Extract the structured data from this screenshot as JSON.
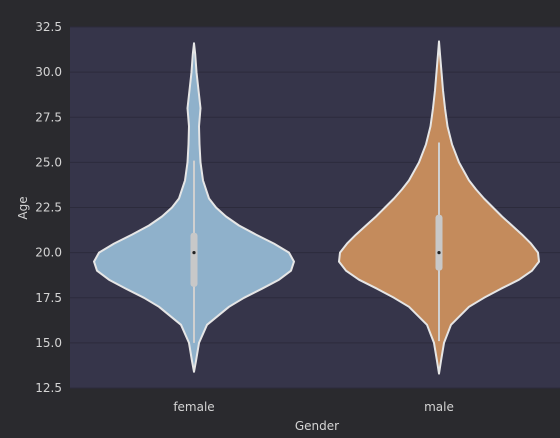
{
  "chart_data": {
    "type": "violin",
    "xlabel": "Gender",
    "ylabel": "Age",
    "ylim": [
      12.5,
      32.5
    ],
    "yticks": [
      12.5,
      15.0,
      17.5,
      20.0,
      22.5,
      25.0,
      27.5,
      30.0,
      32.5
    ],
    "grid": true,
    "categories": [
      "female",
      "male"
    ],
    "colors": {
      "background": "#2a2a2e",
      "plot_area": "#36354a",
      "grid": "#2c2b3c",
      "text": "#d4d4d4",
      "outline": "#e6e6e6",
      "whisker": "#d0d0d0",
      "box": "#c8c8c8",
      "female": "#8fb1cb",
      "male": "#c48b5c"
    },
    "series": [
      {
        "category": "female",
        "min": 13.4,
        "max": 31.6,
        "whisker_low": 15.0,
        "whisker_high": 25.1,
        "q1": 18.1,
        "median": 20.0,
        "q3": 21.1,
        "density_profile": [
          [
            13.4,
            0.0
          ],
          [
            14.0,
            0.02
          ],
          [
            15.0,
            0.05
          ],
          [
            16.0,
            0.13
          ],
          [
            17.0,
            0.35
          ],
          [
            17.5,
            0.5
          ],
          [
            18.0,
            0.68
          ],
          [
            18.5,
            0.85
          ],
          [
            19.0,
            0.97
          ],
          [
            19.5,
            1.0
          ],
          [
            20.0,
            0.95
          ],
          [
            20.5,
            0.8
          ],
          [
            21.0,
            0.62
          ],
          [
            21.5,
            0.45
          ],
          [
            22.0,
            0.32
          ],
          [
            22.5,
            0.22
          ],
          [
            23.0,
            0.15
          ],
          [
            24.0,
            0.09
          ],
          [
            25.0,
            0.065
          ],
          [
            26.0,
            0.055
          ],
          [
            27.0,
            0.05
          ],
          [
            28.0,
            0.065
          ],
          [
            29.0,
            0.045
          ],
          [
            30.0,
            0.025
          ],
          [
            31.0,
            0.012
          ],
          [
            31.6,
            0.0
          ]
        ]
      },
      {
        "category": "male",
        "min": 13.3,
        "max": 31.7,
        "whisker_low": 15.1,
        "whisker_high": 26.1,
        "q1": 19.0,
        "median": 20.0,
        "q3": 22.1,
        "density_profile": [
          [
            13.3,
            0.0
          ],
          [
            14.0,
            0.02
          ],
          [
            15.0,
            0.05
          ],
          [
            16.0,
            0.12
          ],
          [
            17.0,
            0.3
          ],
          [
            17.5,
            0.45
          ],
          [
            18.0,
            0.62
          ],
          [
            18.5,
            0.8
          ],
          [
            19.0,
            0.93
          ],
          [
            19.5,
            1.0
          ],
          [
            20.0,
            0.99
          ],
          [
            20.5,
            0.92
          ],
          [
            21.0,
            0.83
          ],
          [
            21.5,
            0.73
          ],
          [
            22.0,
            0.63
          ],
          [
            22.5,
            0.54
          ],
          [
            23.0,
            0.45
          ],
          [
            23.5,
            0.37
          ],
          [
            24.0,
            0.3
          ],
          [
            25.0,
            0.2
          ],
          [
            26.0,
            0.13
          ],
          [
            27.0,
            0.085
          ],
          [
            28.0,
            0.06
          ],
          [
            29.0,
            0.04
          ],
          [
            30.0,
            0.025
          ],
          [
            31.0,
            0.01
          ],
          [
            31.7,
            0.0
          ]
        ]
      }
    ]
  }
}
